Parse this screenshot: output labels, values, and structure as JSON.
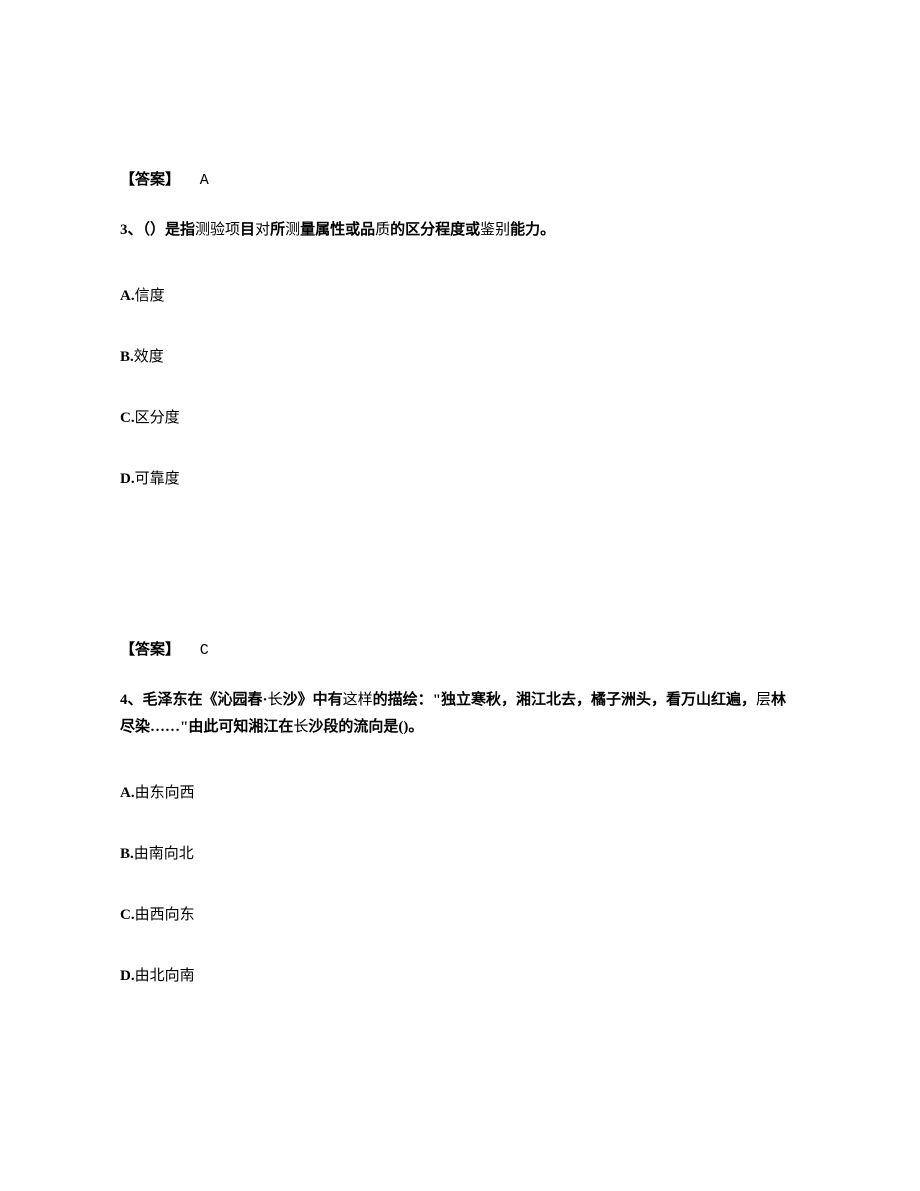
{
  "q3": {
    "prev_answer_label": "【答案】",
    "prev_answer_value": "A",
    "number": "3、",
    "stem_part1": "（）是指",
    "stem_part2": "测验项",
    "stem_part3": "目",
    "stem_part4": "对",
    "stem_part5": "所",
    "stem_part6": "测",
    "stem_part7": "量属性或品",
    "stem_part8": "质",
    "stem_part9": "的区分程度或",
    "stem_part10": "鉴别",
    "stem_part11": "能力。",
    "optA_label": "A.",
    "optA_text": "信度",
    "optB_label": "B.",
    "optB_text": "效度",
    "optC_label": "C.",
    "optC_text": "区分度",
    "optD_label": "D.",
    "optD_text": "可靠度"
  },
  "q4": {
    "prev_answer_label": "【答案】",
    "prev_answer_value": "C",
    "number": "4、",
    "stem_bold1": "毛泽东",
    "stem_part1": "在",
    "stem_bold2": "《沁园春·",
    "stem_part2": "长",
    "stem_bold3": "沙》",
    "stem_part3": "中有",
    "stem_part4": "这样",
    "stem_bold4": "的描绘：\"独立寒秋，湘江北去，橘子洲头，看万山红遍，",
    "stem_part5": "层",
    "stem_bold5": "林尽染……\"由此可",
    "stem_part6": "知湘江在",
    "stem_part7": "长",
    "stem_bold6": "沙段的流向是()。",
    "optA_label": "A.",
    "optA_text1": "由",
    "optA_text2": "东",
    "optA_text3": "向西",
    "optB_label": "B.",
    "optB_text": "由南向北",
    "optC_label": "C.",
    "optC_text1": "由西向",
    "optC_text2": "东",
    "optD_label": "D.",
    "optD_text": "由北向南"
  },
  "colors": {
    "background": "#ffffff",
    "text": "#000000"
  },
  "typography": {
    "body_fontsize": 15,
    "line_height": 1.8,
    "font_family": "SimSun"
  }
}
